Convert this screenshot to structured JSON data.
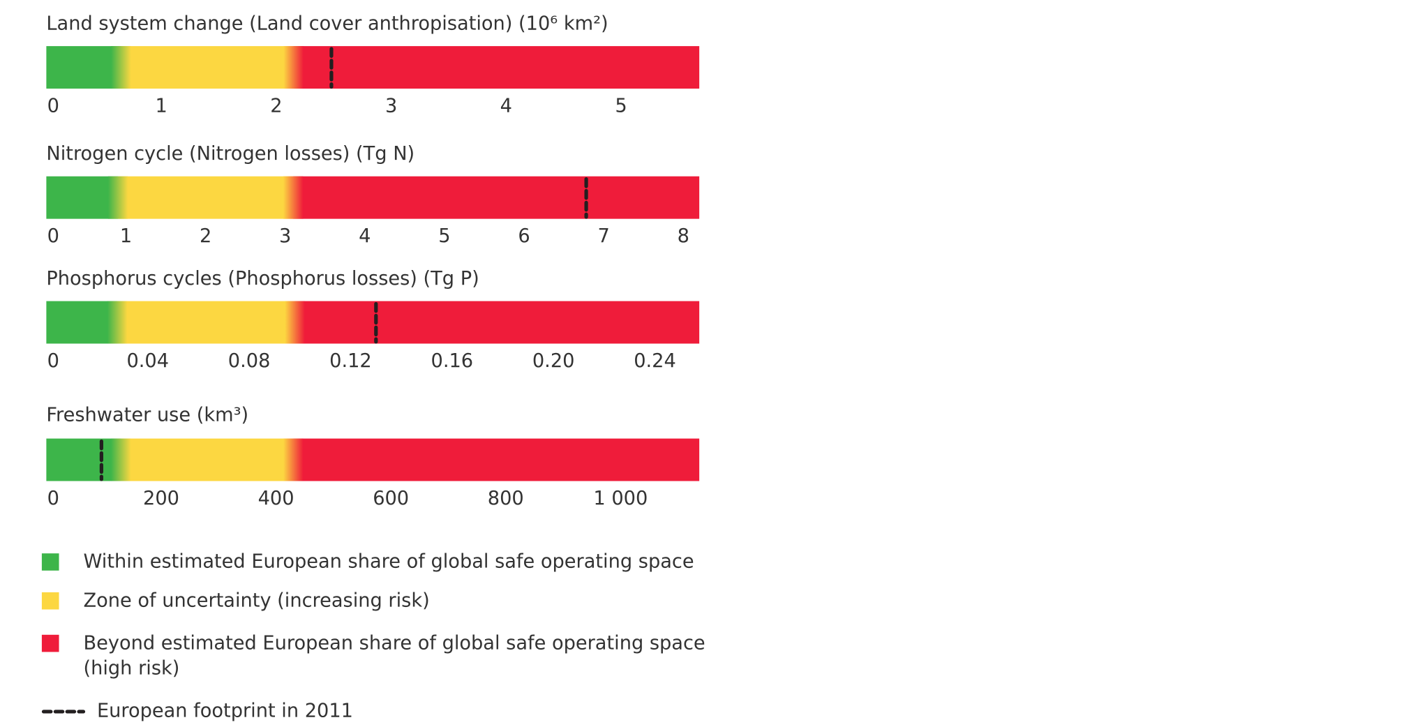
{
  "chart_data": [
    {
      "type": "bar",
      "title": "Land system change (Land cover anthropisation) (10⁶ km²)",
      "xlim": [
        0,
        5.68
      ],
      "xticks": [
        0,
        1,
        2,
        3,
        4,
        5
      ],
      "zone_bounds": [
        0.65,
        2.15
      ],
      "footprint": 2.48
    },
    {
      "type": "bar",
      "title": "Nitrogen cycle (Nitrogen losses) (Tg N)",
      "xlim": [
        0,
        8.2
      ],
      "xticks": [
        0,
        1,
        2,
        3,
        4,
        5,
        6,
        7,
        8
      ],
      "zone_bounds": [
        0.9,
        3.1
      ],
      "footprint": 6.78
    },
    {
      "type": "bar",
      "title": "Phosphorus cycles (Phosphorus losses) (Tg P)",
      "xlim": [
        0,
        0.2575
      ],
      "xticks": [
        0,
        0.04,
        0.08,
        0.12,
        0.16,
        {
          "value": 0.2,
          "label": "0.20"
        },
        0.24
      ],
      "zone_bounds": [
        0.028,
        0.098
      ],
      "footprint": 0.13
    },
    {
      "type": "bar",
      "title": "Freshwater use (km³)",
      "xlim": [
        0,
        1137
      ],
      "xticks": [
        0,
        200,
        400,
        600,
        800,
        {
          "value": 1000,
          "label": "1 000"
        }
      ],
      "zone_bounds": [
        130,
        430
      ],
      "footprint": 96
    }
  ],
  "legend": {
    "zones": [
      {
        "label": "Within estimated European share of global safe operating space",
        "color": "#3db54a"
      },
      {
        "label": "Zone of uncertainty (increasing risk)",
        "color": "#fcd741"
      },
      {
        "label": [
          "Beyond estimated European share of global safe operating space",
          "(high risk)"
        ],
        "color": "#ef1c3a"
      }
    ],
    "footprint": {
      "label": "European footprint in 2011",
      "color": "#231f20"
    }
  }
}
